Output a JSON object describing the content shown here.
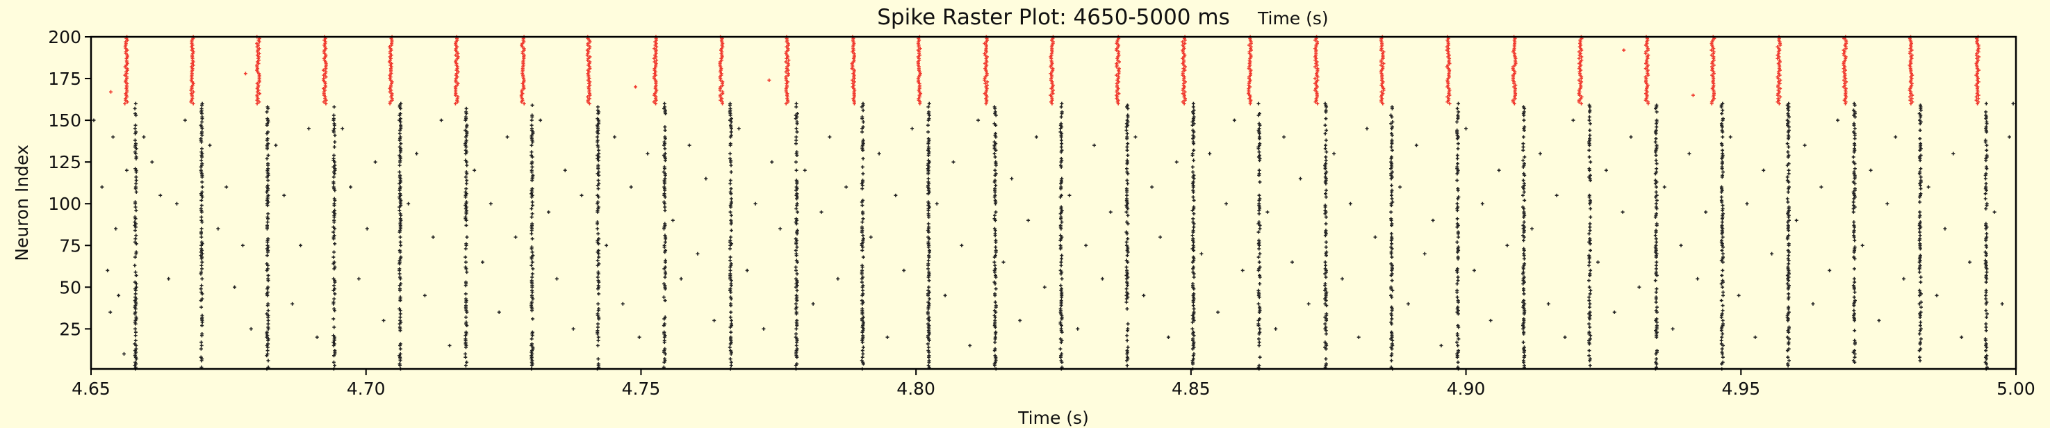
{
  "chart_data": {
    "type": "scatter",
    "title": "Spike Raster Plot: 4650-5000 ms",
    "stray_label": "Time (s)",
    "xlabel": "Time (s)",
    "ylabel": "Neuron Index",
    "xlim": [
      4.65,
      5.0
    ],
    "ylim": [
      1,
      200
    ],
    "xticks": [
      "4.65",
      "4.70",
      "4.75",
      "4.80",
      "4.85",
      "4.90",
      "4.95",
      "5.00"
    ],
    "xtick_values": [
      4.65,
      4.7,
      4.75,
      4.8,
      4.85,
      4.9,
      4.95,
      5.0
    ],
    "yticks": [
      "25",
      "50",
      "75",
      "100",
      "125",
      "150",
      "175",
      "200"
    ],
    "ytick_values": [
      25,
      50,
      75,
      100,
      125,
      150,
      175,
      200
    ],
    "grid": false,
    "background": "#fffddd",
    "series": [
      {
        "color": "#f03a2e",
        "neuron_range": [
          160,
          200
        ],
        "burst_times": [
          4.6564,
          4.6684,
          4.6804,
          4.6925,
          4.7045,
          4.7165,
          4.7285,
          4.7405,
          4.7526,
          4.7646,
          4.7766,
          4.7886,
          4.8006,
          4.8127,
          4.8247,
          4.8367,
          4.8487,
          4.8607,
          4.8728,
          4.8848,
          4.8968,
          4.9088,
          4.9208,
          4.9329,
          4.9449,
          4.9569,
          4.9689,
          4.9809,
          4.993
        ],
        "isolated_spikes": [
          [
            4.6536,
            167
          ],
          [
            4.6781,
            178
          ],
          [
            4.749,
            170
          ],
          [
            4.7733,
            174
          ],
          [
            4.9287,
            192
          ],
          [
            4.9413,
            165
          ]
        ]
      },
      {
        "color": "#222222",
        "neuron_range": [
          1,
          160
        ],
        "burst_times": [
          4.6581,
          4.6701,
          4.6821,
          4.6942,
          4.7062,
          4.7182,
          4.7302,
          4.7422,
          4.7543,
          4.7663,
          4.7783,
          4.7903,
          4.8023,
          4.8144,
          4.8264,
          4.8384,
          4.8504,
          4.8624,
          4.8745,
          4.8865,
          4.8985,
          4.9105,
          4.9225,
          4.9346,
          4.9466,
          4.9586,
          4.9706,
          4.9826,
          4.9946
        ],
        "isolated_spikes": [
          [
            4.6505,
            150
          ],
          [
            4.652,
            110
          ],
          [
            4.653,
            60
          ],
          [
            4.654,
            140
          ],
          [
            4.655,
            45
          ],
          [
            4.656,
            10
          ],
          [
            4.6565,
            120
          ],
          [
            4.6545,
            85
          ],
          [
            4.6535,
            35
          ],
          [
            4.6596,
            140
          ],
          [
            4.6611,
            125
          ],
          [
            4.6626,
            105
          ],
          [
            4.6641,
            55
          ],
          [
            4.6656,
            100
          ],
          [
            4.6671,
            150
          ],
          [
            4.6716,
            135
          ],
          [
            4.6731,
            85
          ],
          [
            4.6746,
            110
          ],
          [
            4.6761,
            50
          ],
          [
            4.6776,
            75
          ],
          [
            4.6791,
            25
          ],
          [
            4.6836,
            135
          ],
          [
            4.6851,
            105
          ],
          [
            4.6866,
            40
          ],
          [
            4.6881,
            75
          ],
          [
            4.6896,
            145
          ],
          [
            4.6911,
            20
          ],
          [
            4.6957,
            145
          ],
          [
            4.6972,
            110
          ],
          [
            4.6987,
            55
          ],
          [
            4.7002,
            85
          ],
          [
            4.7017,
            125
          ],
          [
            4.7032,
            30
          ],
          [
            4.7077,
            100
          ],
          [
            4.7092,
            130
          ],
          [
            4.7107,
            45
          ],
          [
            4.7122,
            80
          ],
          [
            4.7137,
            150
          ],
          [
            4.7152,
            15
          ],
          [
            4.7197,
            120
          ],
          [
            4.7212,
            65
          ],
          [
            4.7227,
            100
          ],
          [
            4.7242,
            35
          ],
          [
            4.7257,
            140
          ],
          [
            4.7272,
            80
          ],
          [
            4.7317,
            150
          ],
          [
            4.7332,
            95
          ],
          [
            4.7347,
            55
          ],
          [
            4.7362,
            120
          ],
          [
            4.7377,
            25
          ],
          [
            4.7392,
            105
          ],
          [
            4.7437,
            75
          ],
          [
            4.7452,
            140
          ],
          [
            4.7467,
            40
          ],
          [
            4.7482,
            110
          ],
          [
            4.7497,
            20
          ],
          [
            4.7512,
            130
          ],
          [
            4.7558,
            90
          ],
          [
            4.7573,
            55
          ],
          [
            4.7588,
            135
          ],
          [
            4.7603,
            70
          ],
          [
            4.7618,
            115
          ],
          [
            4.7633,
            30
          ],
          [
            4.7678,
            145
          ],
          [
            4.7693,
            60
          ],
          [
            4.7708,
            100
          ],
          [
            4.7723,
            25
          ],
          [
            4.7738,
            125
          ],
          [
            4.7753,
            85
          ],
          [
            4.7798,
            120
          ],
          [
            4.7813,
            40
          ],
          [
            4.7828,
            95
          ],
          [
            4.7843,
            140
          ],
          [
            4.7858,
            55
          ],
          [
            4.7873,
            110
          ],
          [
            4.7918,
            80
          ],
          [
            4.7933,
            130
          ],
          [
            4.7948,
            20
          ],
          [
            4.7963,
            105
          ],
          [
            4.7978,
            60
          ],
          [
            4.7993,
            145
          ],
          [
            4.8038,
            100
          ],
          [
            4.8053,
            45
          ],
          [
            4.8068,
            125
          ],
          [
            4.8083,
            75
          ],
          [
            4.8098,
            15
          ],
          [
            4.8113,
            150
          ],
          [
            4.8159,
            65
          ],
          [
            4.8174,
            115
          ],
          [
            4.8189,
            30
          ],
          [
            4.8204,
            90
          ],
          [
            4.8219,
            140
          ],
          [
            4.8234,
            50
          ],
          [
            4.8279,
            105
          ],
          [
            4.8294,
            25
          ],
          [
            4.8309,
            75
          ],
          [
            4.8324,
            135
          ],
          [
            4.8339,
            55
          ],
          [
            4.8354,
            95
          ],
          [
            4.8399,
            140
          ],
          [
            4.8414,
            45
          ],
          [
            4.8429,
            110
          ],
          [
            4.8444,
            80
          ],
          [
            4.8459,
            20
          ],
          [
            4.8474,
            125
          ],
          [
            4.8519,
            70
          ],
          [
            4.8534,
            130
          ],
          [
            4.8549,
            35
          ],
          [
            4.8564,
            100
          ],
          [
            4.8579,
            150
          ],
          [
            4.8594,
            60
          ],
          [
            4.8639,
            95
          ],
          [
            4.8654,
            25
          ],
          [
            4.8669,
            140
          ],
          [
            4.8684,
            65
          ],
          [
            4.8699,
            115
          ],
          [
            4.8714,
            40
          ],
          [
            4.876,
            130
          ],
          [
            4.8775,
            55
          ],
          [
            4.879,
            100
          ],
          [
            4.8805,
            20
          ],
          [
            4.882,
            145
          ],
          [
            4.8835,
            80
          ],
          [
            4.888,
            110
          ],
          [
            4.8895,
            40
          ],
          [
            4.891,
            135
          ],
          [
            4.8925,
            70
          ],
          [
            4.894,
            90
          ],
          [
            4.8955,
            15
          ],
          [
            4.9,
            145
          ],
          [
            4.9015,
            60
          ],
          [
            4.903,
            100
          ],
          [
            4.9045,
            30
          ],
          [
            4.906,
            120
          ],
          [
            4.9075,
            75
          ],
          [
            4.912,
            85
          ],
          [
            4.9135,
            130
          ],
          [
            4.915,
            40
          ],
          [
            4.9165,
            105
          ],
          [
            4.918,
            20
          ],
          [
            4.9195,
            150
          ],
          [
            4.924,
            65
          ],
          [
            4.9255,
            120
          ],
          [
            4.927,
            35
          ],
          [
            4.9285,
            95
          ],
          [
            4.93,
            140
          ],
          [
            4.9315,
            50
          ],
          [
            4.9361,
            110
          ],
          [
            4.9376,
            25
          ],
          [
            4.9391,
            75
          ],
          [
            4.9406,
            130
          ],
          [
            4.9421,
            55
          ],
          [
            4.9436,
            95
          ],
          [
            4.9481,
            140
          ],
          [
            4.9496,
            45
          ],
          [
            4.9511,
            100
          ],
          [
            4.9526,
            20
          ],
          [
            4.9541,
            120
          ],
          [
            4.9556,
            70
          ],
          [
            4.9601,
            90
          ],
          [
            4.9616,
            135
          ],
          [
            4.9631,
            40
          ],
          [
            4.9646,
            110
          ],
          [
            4.9661,
            60
          ],
          [
            4.9676,
            150
          ],
          [
            4.9721,
            75
          ],
          [
            4.9736,
            120
          ],
          [
            4.9751,
            30
          ],
          [
            4.9766,
            100
          ],
          [
            4.9781,
            140
          ],
          [
            4.9796,
            55
          ],
          [
            4.9841,
            110
          ],
          [
            4.9856,
            45
          ],
          [
            4.9871,
            85
          ],
          [
            4.9886,
            130
          ],
          [
            4.9901,
            20
          ],
          [
            4.9916,
            65
          ],
          [
            4.9961,
            95
          ],
          [
            4.9975,
            40
          ],
          [
            4.9988,
            140
          ],
          [
            4.9995,
            160
          ]
        ]
      }
    ]
  }
}
